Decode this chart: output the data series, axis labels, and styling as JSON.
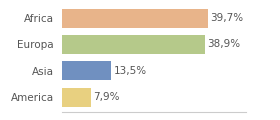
{
  "categories": [
    "Africa",
    "Europa",
    "Asia",
    "America"
  ],
  "values": [
    39.7,
    38.9,
    13.5,
    7.9
  ],
  "labels": [
    "39,7%",
    "38,9%",
    "13,5%",
    "7,9%"
  ],
  "bar_colors": [
    "#e8b48a",
    "#b5c98a",
    "#7090c0",
    "#e8d080"
  ],
  "background_color": "#ffffff",
  "xlim": [
    0,
    50
  ],
  "label_fontsize": 7.5,
  "tick_fontsize": 7.5,
  "bar_height": 0.72
}
